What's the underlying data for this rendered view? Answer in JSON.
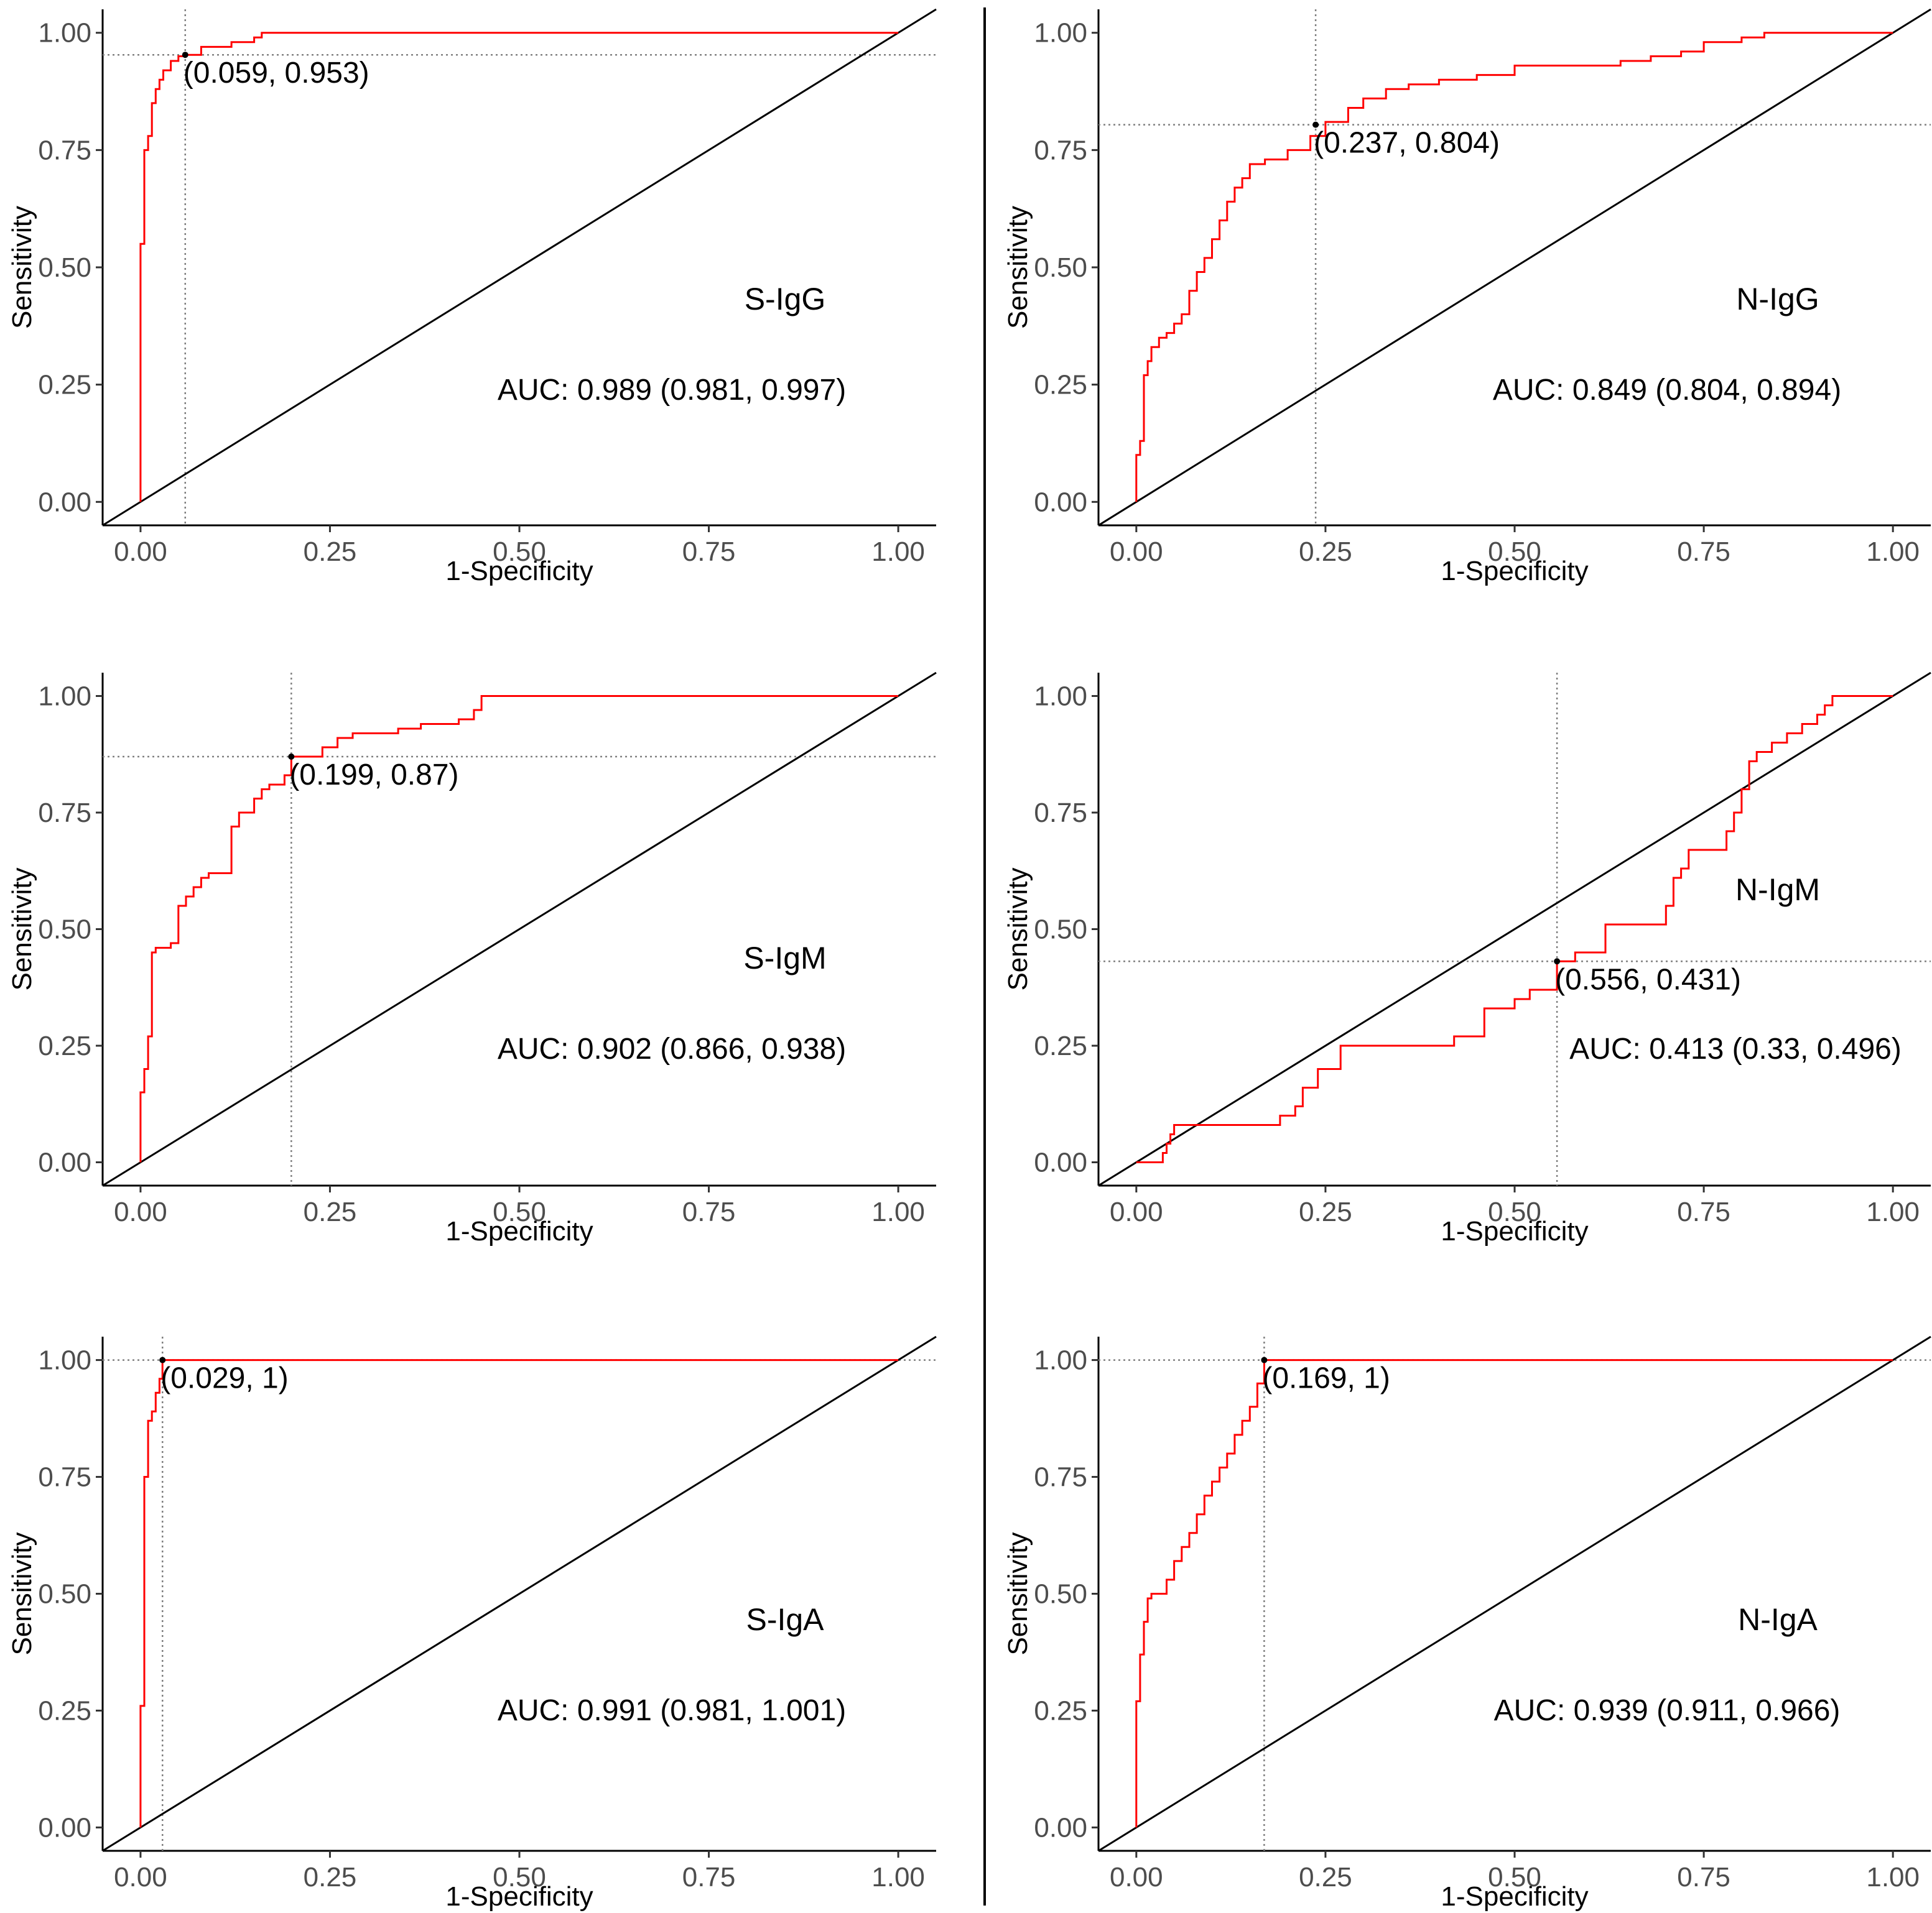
{
  "figure": {
    "colors": {
      "roc": "#ff0000",
      "diagonal": "#000000",
      "cutoff": "#808080",
      "axis": "#000000",
      "tick_text": "#4d4d4d",
      "text": "#000000"
    }
  },
  "chart_data": [
    {
      "type": "line",
      "panel": "S-IgG",
      "label": "S-IgG",
      "auc_text": "AUC: 0.989 (0.981, 0.997)",
      "xlabel": "1-Specificity",
      "ylabel": "Sensitivity",
      "xlim": [
        -0.05,
        1.05
      ],
      "ylim": [
        -0.05,
        1.05
      ],
      "x_ticks": [
        "0.00",
        "0.25",
        "0.50",
        "0.75",
        "1.00"
      ],
      "y_ticks": [
        "0.00",
        "0.25",
        "0.50",
        "0.75",
        "1.00"
      ],
      "cutoff": {
        "x": 0.059,
        "y": 0.953,
        "label": "(0.059, 0.953)"
      },
      "series": [
        {
          "name": "ROC",
          "x": [
            0,
            0,
            0.005,
            0.005,
            0.01,
            0.01,
            0.015,
            0.015,
            0.02,
            0.02,
            0.025,
            0.025,
            0.03,
            0.03,
            0.04,
            0.04,
            0.05,
            0.05,
            0.059,
            0.059,
            0.08,
            0.08,
            0.12,
            0.12,
            0.15,
            0.15,
            0.16,
            0.16,
            1
          ],
          "y": [
            0,
            0.55,
            0.55,
            0.75,
            0.75,
            0.78,
            0.78,
            0.85,
            0.85,
            0.88,
            0.88,
            0.9,
            0.9,
            0.92,
            0.92,
            0.94,
            0.94,
            0.95,
            0.95,
            0.953,
            0.953,
            0.97,
            0.97,
            0.98,
            0.98,
            0.99,
            0.99,
            1,
            1
          ]
        }
      ]
    },
    {
      "type": "line",
      "panel": "N-IgG",
      "label": "N-IgG",
      "auc_text": "AUC: 0.849 (0.804, 0.894)",
      "xlabel": "1-Specificity",
      "ylabel": "Sensitivity",
      "xlim": [
        -0.05,
        1.05
      ],
      "ylim": [
        -0.05,
        1.05
      ],
      "x_ticks": [
        "0.00",
        "0.25",
        "0.50",
        "0.75",
        "1.00"
      ],
      "y_ticks": [
        "0.00",
        "0.25",
        "0.50",
        "0.75",
        "1.00"
      ],
      "cutoff": {
        "x": 0.237,
        "y": 0.804,
        "label": "(0.237, 0.804)"
      },
      "series": [
        {
          "name": "ROC",
          "x": [
            0,
            0,
            0.005,
            0.005,
            0.01,
            0.01,
            0.015,
            0.015,
            0.02,
            0.02,
            0.03,
            0.03,
            0.04,
            0.04,
            0.05,
            0.05,
            0.06,
            0.06,
            0.07,
            0.07,
            0.08,
            0.08,
            0.09,
            0.09,
            0.1,
            0.1,
            0.11,
            0.11,
            0.12,
            0.12,
            0.13,
            0.13,
            0.14,
            0.14,
            0.15,
            0.15,
            0.17,
            0.17,
            0.2,
            0.2,
            0.23,
            0.23,
            0.25,
            0.25,
            0.28,
            0.28,
            0.3,
            0.3,
            0.33,
            0.33,
            0.36,
            0.36,
            0.4,
            0.4,
            0.45,
            0.45,
            0.5,
            0.5,
            0.64,
            0.64,
            0.68,
            0.68,
            0.72,
            0.72,
            0.75,
            0.75,
            0.8,
            0.8,
            0.83,
            0.83,
            0.9,
            0.9,
            1
          ],
          "y": [
            0,
            0.1,
            0.1,
            0.13,
            0.13,
            0.27,
            0.27,
            0.3,
            0.3,
            0.33,
            0.33,
            0.35,
            0.35,
            0.36,
            0.36,
            0.38,
            0.38,
            0.4,
            0.4,
            0.45,
            0.45,
            0.49,
            0.49,
            0.52,
            0.52,
            0.56,
            0.56,
            0.6,
            0.6,
            0.64,
            0.64,
            0.67,
            0.67,
            0.69,
            0.69,
            0.72,
            0.72,
            0.73,
            0.73,
            0.75,
            0.75,
            0.78,
            0.78,
            0.81,
            0.81,
            0.84,
            0.84,
            0.86,
            0.86,
            0.88,
            0.88,
            0.89,
            0.89,
            0.9,
            0.9,
            0.91,
            0.91,
            0.93,
            0.93,
            0.94,
            0.94,
            0.95,
            0.95,
            0.96,
            0.96,
            0.98,
            0.98,
            0.99,
            0.99,
            1,
            1,
            1,
            1
          ]
        }
      ]
    },
    {
      "type": "line",
      "panel": "S-IgM",
      "label": "S-IgM",
      "auc_text": "AUC: 0.902 (0.866, 0.938)",
      "xlabel": "1-Specificity",
      "ylabel": "Sensitivity",
      "xlim": [
        -0.05,
        1.05
      ],
      "ylim": [
        -0.05,
        1.05
      ],
      "x_ticks": [
        "0.00",
        "0.25",
        "0.50",
        "0.75",
        "1.00"
      ],
      "y_ticks": [
        "0.00",
        "0.25",
        "0.50",
        "0.75",
        "1.00"
      ],
      "cutoff": {
        "x": 0.199,
        "y": 0.87,
        "label": "(0.199, 0.87)"
      },
      "series": [
        {
          "name": "ROC",
          "x": [
            0,
            0,
            0.005,
            0.005,
            0.01,
            0.01,
            0.015,
            0.015,
            0.02,
            0.02,
            0.04,
            0.04,
            0.05,
            0.05,
            0.06,
            0.06,
            0.07,
            0.07,
            0.08,
            0.08,
            0.09,
            0.09,
            0.12,
            0.12,
            0.13,
            0.13,
            0.15,
            0.15,
            0.16,
            0.16,
            0.17,
            0.17,
            0.19,
            0.19,
            0.199,
            0.199,
            0.24,
            0.24,
            0.26,
            0.26,
            0.28,
            0.28,
            0.34,
            0.34,
            0.37,
            0.37,
            0.42,
            0.42,
            0.44,
            0.44,
            0.45,
            0.45,
            1
          ],
          "y": [
            0,
            0.15,
            0.15,
            0.2,
            0.2,
            0.27,
            0.27,
            0.45,
            0.45,
            0.46,
            0.46,
            0.47,
            0.47,
            0.55,
            0.55,
            0.57,
            0.57,
            0.59,
            0.59,
            0.61,
            0.61,
            0.62,
            0.62,
            0.72,
            0.72,
            0.75,
            0.75,
            0.78,
            0.78,
            0.8,
            0.8,
            0.81,
            0.81,
            0.83,
            0.83,
            0.87,
            0.87,
            0.89,
            0.89,
            0.91,
            0.91,
            0.92,
            0.92,
            0.93,
            0.93,
            0.94,
            0.94,
            0.95,
            0.95,
            0.97,
            0.97,
            1,
            1
          ]
        }
      ]
    },
    {
      "type": "line",
      "panel": "N-IgM",
      "label": "N-IgM",
      "auc_text": "AUC: 0.413 (0.33, 0.496)",
      "xlabel": "1-Specificity",
      "ylabel": "Sensitivity",
      "xlim": [
        -0.05,
        1.05
      ],
      "ylim": [
        -0.05,
        1.05
      ],
      "x_ticks": [
        "0.00",
        "0.25",
        "0.50",
        "0.75",
        "1.00"
      ],
      "y_ticks": [
        "0.00",
        "0.25",
        "0.50",
        "0.75",
        "1.00"
      ],
      "cutoff": {
        "x": 0.556,
        "y": 0.431,
        "label": "(0.556, 0.431)"
      },
      "series": [
        {
          "name": "ROC",
          "x": [
            0,
            0.035,
            0.035,
            0.04,
            0.04,
            0.045,
            0.045,
            0.05,
            0.05,
            0.19,
            0.19,
            0.21,
            0.21,
            0.22,
            0.22,
            0.24,
            0.24,
            0.27,
            0.27,
            0.42,
            0.42,
            0.46,
            0.46,
            0.5,
            0.5,
            0.52,
            0.52,
            0.556,
            0.556,
            0.58,
            0.58,
            0.62,
            0.62,
            0.7,
            0.7,
            0.71,
            0.71,
            0.72,
            0.72,
            0.73,
            0.73,
            0.78,
            0.78,
            0.79,
            0.79,
            0.8,
            0.8,
            0.81,
            0.81,
            0.82,
            0.82,
            0.84,
            0.84,
            0.86,
            0.86,
            0.88,
            0.88,
            0.9,
            0.9,
            0.91,
            0.91,
            0.92,
            0.92,
            1
          ],
          "y": [
            0,
            0,
            0.02,
            0.02,
            0.04,
            0.04,
            0.06,
            0.06,
            0.08,
            0.08,
            0.1,
            0.1,
            0.12,
            0.12,
            0.16,
            0.16,
            0.2,
            0.2,
            0.25,
            0.25,
            0.27,
            0.27,
            0.33,
            0.33,
            0.35,
            0.35,
            0.37,
            0.37,
            0.431,
            0.431,
            0.45,
            0.45,
            0.51,
            0.51,
            0.55,
            0.55,
            0.61,
            0.61,
            0.63,
            0.63,
            0.67,
            0.67,
            0.71,
            0.71,
            0.75,
            0.75,
            0.8,
            0.8,
            0.86,
            0.86,
            0.88,
            0.88,
            0.9,
            0.9,
            0.92,
            0.92,
            0.94,
            0.94,
            0.96,
            0.96,
            0.98,
            0.98,
            1,
            1
          ]
        }
      ]
    },
    {
      "type": "line",
      "panel": "S-IgA",
      "label": "S-IgA",
      "auc_text": "AUC: 0.991 (0.981, 1.001)",
      "xlabel": "1-Specificity",
      "ylabel": "Sensitivity",
      "xlim": [
        -0.05,
        1.05
      ],
      "ylim": [
        -0.05,
        1.05
      ],
      "x_ticks": [
        "0.00",
        "0.25",
        "0.50",
        "0.75",
        "1.00"
      ],
      "y_ticks": [
        "0.00",
        "0.25",
        "0.50",
        "0.75",
        "1.00"
      ],
      "cutoff": {
        "x": 0.029,
        "y": 1,
        "label": "(0.029, 1)"
      },
      "series": [
        {
          "name": "ROC",
          "x": [
            0,
            0,
            0.005,
            0.005,
            0.01,
            0.01,
            0.015,
            0.015,
            0.02,
            0.02,
            0.025,
            0.025,
            0.029,
            0.029,
            1
          ],
          "y": [
            0,
            0.26,
            0.26,
            0.75,
            0.75,
            0.87,
            0.87,
            0.89,
            0.89,
            0.93,
            0.93,
            0.96,
            0.96,
            1,
            1
          ]
        }
      ]
    },
    {
      "type": "line",
      "panel": "N-IgA",
      "label": "N-IgA",
      "auc_text": "AUC: 0.939 (0.911, 0.966)",
      "xlabel": "1-Specificity",
      "ylabel": "Sensitivity",
      "xlim": [
        -0.05,
        1.05
      ],
      "ylim": [
        -0.05,
        1.05
      ],
      "x_ticks": [
        "0.00",
        "0.25",
        "0.50",
        "0.75",
        "1.00"
      ],
      "y_ticks": [
        "0.00",
        "0.25",
        "0.50",
        "0.75",
        "1.00"
      ],
      "cutoff": {
        "x": 0.169,
        "y": 1,
        "label": "(0.169, 1)"
      },
      "series": [
        {
          "name": "ROC",
          "x": [
            0,
            0,
            0.005,
            0.005,
            0.01,
            0.01,
            0.015,
            0.015,
            0.02,
            0.02,
            0.04,
            0.04,
            0.05,
            0.05,
            0.06,
            0.06,
            0.07,
            0.07,
            0.08,
            0.08,
            0.09,
            0.09,
            0.1,
            0.1,
            0.11,
            0.11,
            0.12,
            0.12,
            0.13,
            0.13,
            0.14,
            0.14,
            0.15,
            0.15,
            0.16,
            0.16,
            0.169,
            0.169,
            1
          ],
          "y": [
            0,
            0.27,
            0.27,
            0.37,
            0.37,
            0.44,
            0.44,
            0.49,
            0.49,
            0.5,
            0.5,
            0.53,
            0.53,
            0.57,
            0.57,
            0.6,
            0.6,
            0.63,
            0.63,
            0.67,
            0.67,
            0.71,
            0.71,
            0.74,
            0.74,
            0.77,
            0.77,
            0.8,
            0.8,
            0.84,
            0.84,
            0.87,
            0.87,
            0.9,
            0.9,
            0.95,
            0.95,
            1,
            1
          ]
        }
      ]
    }
  ]
}
